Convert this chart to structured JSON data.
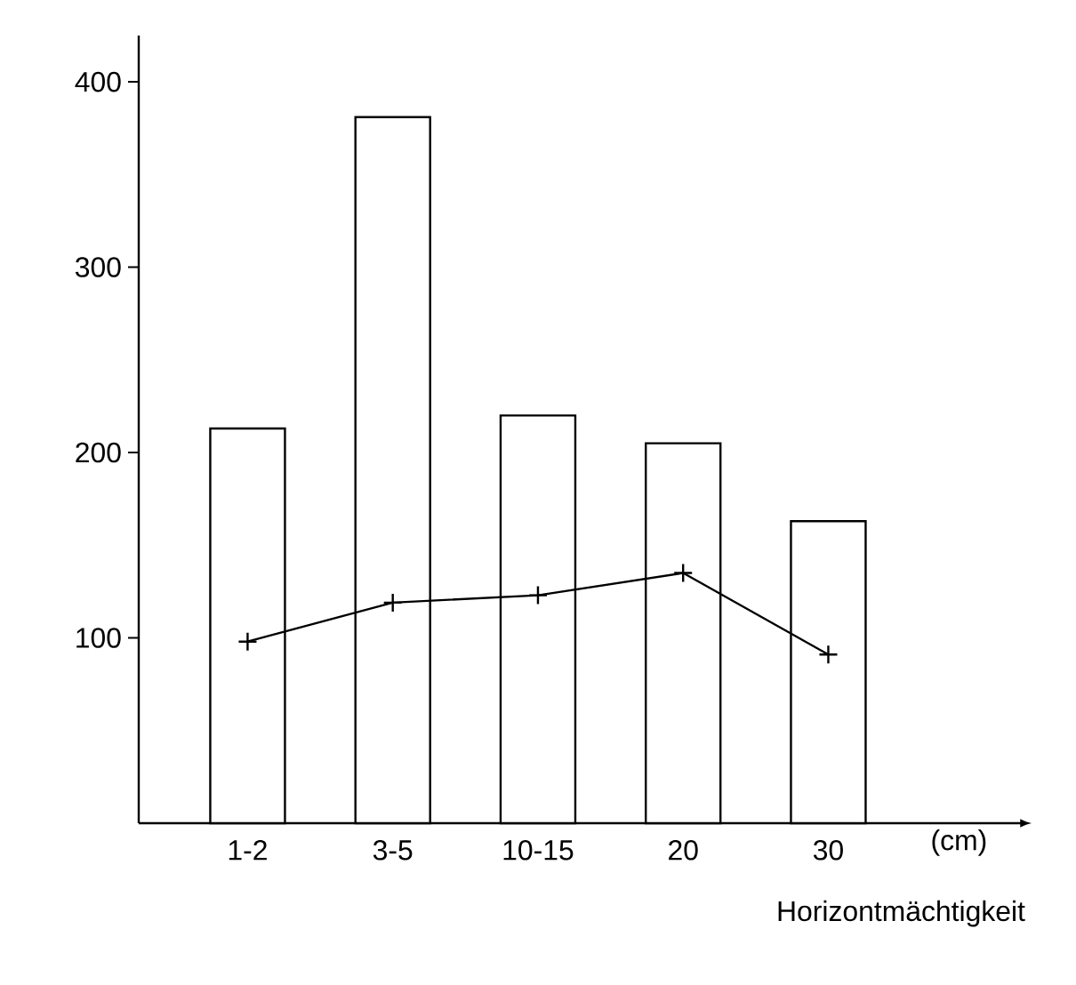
{
  "chart_data": {
    "type": "bar",
    "xlabel": "Horizontmächtigkeit",
    "categories": [
      "1-2",
      "3-5",
      "10-15",
      "20",
      "30"
    ],
    "series": [
      {
        "color": "#ffffff",
        "values": [
          213,
          381,
          220,
          205,
          163
        ]
      },
      {
        "type": "line",
        "color": "#000000",
        "values": [
          98,
          119,
          123,
          135,
          91
        ],
        "marker": "cross"
      }
    ],
    "ylim": [
      0,
      425
    ],
    "yticks": [
      100,
      200,
      300,
      400
    ],
    "annotations": [
      "(cm)"
    ]
  }
}
